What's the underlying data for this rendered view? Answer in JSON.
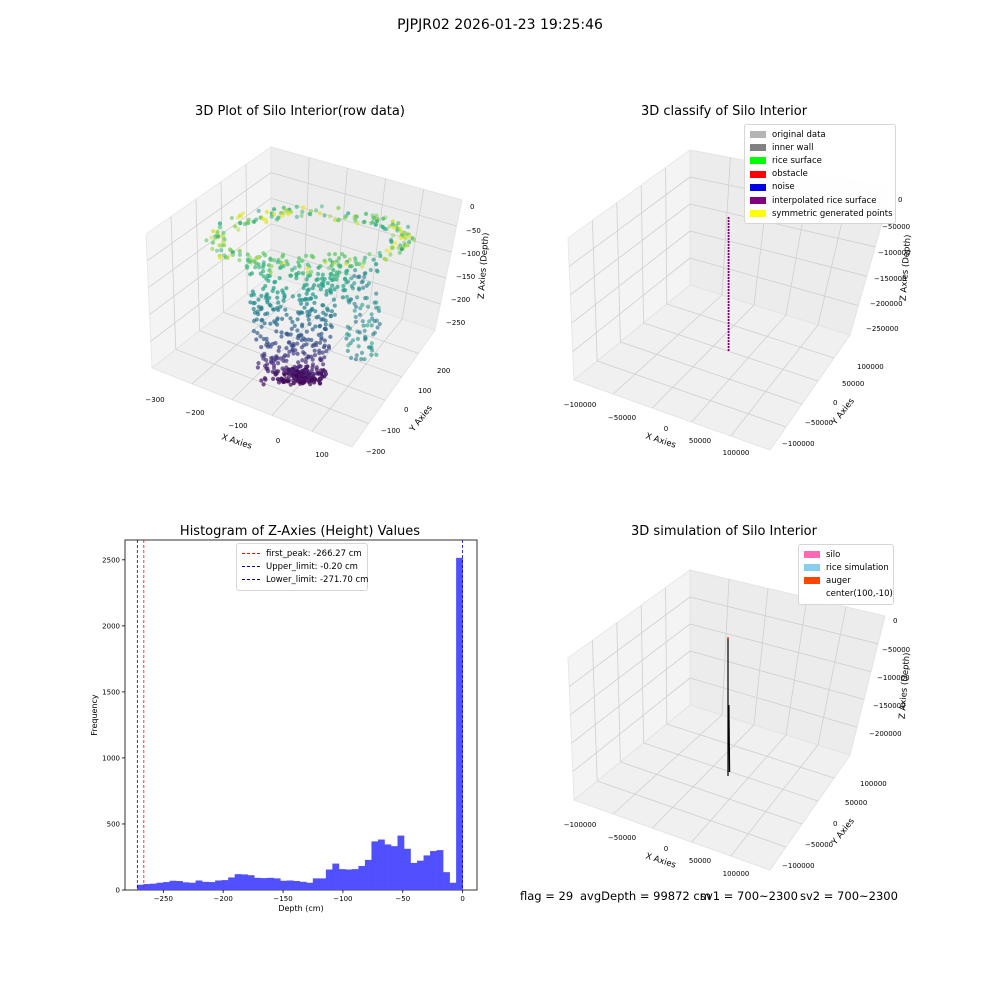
{
  "suptitle": "PJPJR02 2026-01-23 19:25:46",
  "footer": {
    "flag": "flag = 29",
    "avg_depth": "avgDepth = 99872 cm",
    "sv1": "sv1 = 700~2300",
    "sv2": "sv2 = 700~2300"
  },
  "chart_data": [
    {
      "type": "scatter",
      "title": "3D Plot of Silo Interior(row data)",
      "projection": "3d",
      "xlabel": "X Axies",
      "ylabel": "Y Axies",
      "zlabel": "Z Axies (Depth)",
      "x_ticks": [
        "−300",
        "−200",
        "−100",
        "0",
        "100"
      ],
      "y_ticks": [
        "−200",
        "−100",
        "0",
        "100",
        "200"
      ],
      "z_ticks": [
        "0",
        "−50",
        "−100",
        "−150",
        "−200",
        "−250"
      ],
      "xlim": [
        -310,
        130
      ],
      "ylim": [
        -220,
        240
      ],
      "zlim": [
        -285,
        5
      ],
      "colormap": "viridis (color encodes depth)",
      "structure": "funnel-shaped point cloud: a ring of points near depth 0 to −50 narrowing to a dense cluster near depth −270"
    },
    {
      "type": "scatter",
      "title": "3D classify of Silo Interior",
      "projection": "3d",
      "xlabel": "X Axies",
      "ylabel": "Y Axies",
      "zlabel": "Z Axies (Depth)",
      "x_ticks": [
        "−100000",
        "−50000",
        "0",
        "50000",
        "100000"
      ],
      "y_ticks": [
        "−100000",
        "−50000",
        "0",
        "50000",
        "100000"
      ],
      "z_ticks": [
        "0",
        "−50000",
        "−100000",
        "−150000",
        "−200000",
        "−250000"
      ],
      "legend_placement": "top-right",
      "legend": [
        {
          "label": "original data",
          "color": "#b4b4b4"
        },
        {
          "label": "inner wall",
          "color": "#808080"
        },
        {
          "label": "rice surface",
          "color": "#00ff00"
        },
        {
          "label": "obstacle",
          "color": "#ff0000"
        },
        {
          "label": "noise",
          "color": "#0000e6"
        },
        {
          "label": "interpolated rice surface",
          "color": "#800080"
        },
        {
          "label": "symmetric generated points",
          "color": "#ffff00"
        }
      ],
      "structure": "a single thin vertical column of purple points near x=0, y=0"
    },
    {
      "type": "bar",
      "title": "Histogram of Z-Axies (Height) Values",
      "xlabel": "Depth (cm)",
      "ylabel": "Frequency",
      "xlim": [
        -282,
        12
      ],
      "ylim": [
        0,
        2650
      ],
      "x_ticks": [
        -250,
        -200,
        -150,
        -100,
        -50,
        0
      ],
      "y_ticks": [
        0,
        500,
        1000,
        1500,
        2000,
        2500
      ],
      "bar_color": "#4d4dff",
      "bin_start": -272,
      "bin_width": 5.44,
      "values": [
        40,
        45,
        48,
        55,
        60,
        70,
        68,
        58,
        55,
        72,
        62,
        60,
        72,
        75,
        95,
        120,
        118,
        112,
        92,
        90,
        92,
        88,
        70,
        72,
        68,
        62,
        55,
        88,
        88,
        155,
        200,
        158,
        155,
        158,
        182,
        228,
        368,
        382,
        345,
        332,
        412,
        312,
        205,
        222,
        262,
        295,
        302,
        135,
        55,
        2515
      ],
      "lines": [
        {
          "label": "first_peak: -266.27 cm",
          "x": -266.27,
          "color": "#ff0000"
        },
        {
          "label": "Upper_limit: -0.20 cm",
          "x": -0.2,
          "color": "#0000aa"
        },
        {
          "label": "Lower_limit: -271.70 cm",
          "x": -271.7,
          "color": "#0000aa"
        }
      ],
      "legend_placement": "top-center"
    },
    {
      "type": "line",
      "title": "3D simulation of Silo Interior",
      "projection": "3d",
      "xlabel": "X Axies",
      "ylabel": "Y Axies",
      "zlabel": "Z Axies (Depth)",
      "x_ticks": [
        "−100000",
        "−50000",
        "0",
        "50000",
        "100000"
      ],
      "y_ticks": [
        "−100000",
        "−50000",
        "0",
        "50000",
        "100000"
      ],
      "z_ticks": [
        "0",
        "−50000",
        "−100000",
        "−150000",
        "−200000"
      ],
      "legend_placement": "top-right",
      "legend": [
        {
          "label": "silo",
          "color": "#ff69b4"
        },
        {
          "label": "rice simulation",
          "color": "#87ceeb"
        },
        {
          "label": "auger",
          "color": "#ff4500"
        },
        {
          "label": "center(100,-10)",
          "color": ""
        }
      ],
      "structure": "a single thin vertical black line near x=0, y=0"
    }
  ]
}
